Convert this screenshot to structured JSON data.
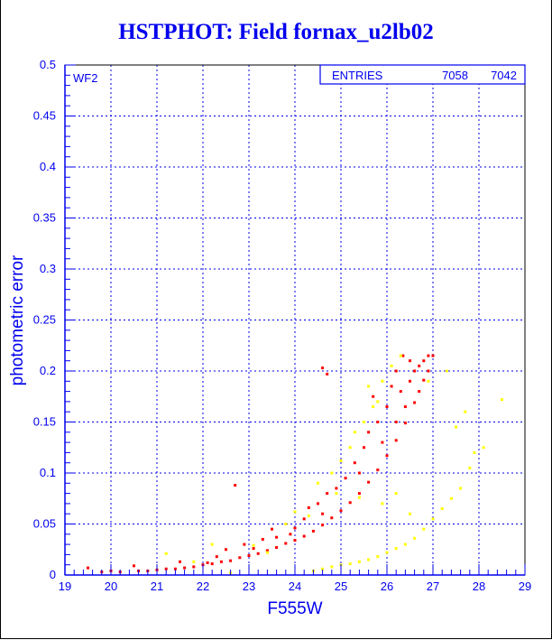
{
  "chart_data": {
    "type": "scatter",
    "title": "HSTPHOT: Field fornax_u2lb02",
    "panel_label": "WF2",
    "xlabel": "F555W",
    "ylabel": "photometric error",
    "xlim": [
      19,
      29
    ],
    "ylim": [
      0,
      0.5
    ],
    "grid": true,
    "x_ticks": [
      "19",
      "20",
      "21",
      "22",
      "23",
      "24",
      "25",
      "26",
      "27",
      "28",
      "29"
    ],
    "y_ticks": [
      "0",
      "0.05",
      "0.1",
      "0.15",
      "0.2",
      "0.25",
      "0.3",
      "0.35",
      "0.4",
      "0.45",
      "0.5"
    ],
    "stats_box": {
      "label": "ENTRIES",
      "values": [
        "7058",
        "7042"
      ],
      "placement": "top-right"
    },
    "series": [
      {
        "name": "red",
        "color": "#ff0000",
        "points": [
          [
            19.5,
            0.007
          ],
          [
            19.8,
            0.003
          ],
          [
            20.0,
            0.004
          ],
          [
            20.2,
            0.003
          ],
          [
            20.5,
            0.009
          ],
          [
            20.6,
            0.004
          ],
          [
            20.8,
            0.004
          ],
          [
            21.0,
            0.005
          ],
          [
            21.2,
            0.006
          ],
          [
            21.4,
            0.006
          ],
          [
            21.6,
            0.007
          ],
          [
            21.8,
            0.008
          ],
          [
            22.0,
            0.01
          ],
          [
            22.2,
            0.011
          ],
          [
            22.4,
            0.013
          ],
          [
            22.6,
            0.014
          ],
          [
            22.8,
            0.017
          ],
          [
            23.0,
            0.019
          ],
          [
            23.2,
            0.021
          ],
          [
            23.4,
            0.024
          ],
          [
            23.6,
            0.027
          ],
          [
            23.8,
            0.031
          ],
          [
            24.0,
            0.034
          ],
          [
            24.2,
            0.038
          ],
          [
            24.4,
            0.043
          ],
          [
            24.6,
            0.049
          ],
          [
            24.8,
            0.056
          ],
          [
            25.0,
            0.063
          ],
          [
            25.2,
            0.071
          ],
          [
            25.4,
            0.08
          ],
          [
            25.6,
            0.091
          ],
          [
            25.8,
            0.103
          ],
          [
            26.0,
            0.117
          ],
          [
            26.2,
            0.132
          ],
          [
            26.4,
            0.149
          ],
          [
            26.6,
            0.169
          ],
          [
            26.8,
            0.191
          ],
          [
            27.0,
            0.215
          ],
          [
            22.3,
            0.018
          ],
          [
            22.5,
            0.025
          ],
          [
            22.9,
            0.03
          ],
          [
            23.1,
            0.026
          ],
          [
            23.3,
            0.035
          ],
          [
            23.5,
            0.045
          ],
          [
            23.6,
            0.037
          ],
          [
            23.8,
            0.05
          ],
          [
            24.0,
            0.046
          ],
          [
            24.2,
            0.055
          ],
          [
            24.3,
            0.066
          ],
          [
            24.5,
            0.07
          ],
          [
            24.7,
            0.08
          ],
          [
            24.9,
            0.085
          ],
          [
            25.1,
            0.095
          ],
          [
            25.3,
            0.11
          ],
          [
            25.5,
            0.125
          ],
          [
            25.6,
            0.14
          ],
          [
            25.8,
            0.15
          ],
          [
            26.0,
            0.165
          ],
          [
            26.1,
            0.185
          ],
          [
            26.2,
            0.2
          ],
          [
            26.35,
            0.215
          ],
          [
            26.5,
            0.21
          ],
          [
            26.7,
            0.205
          ],
          [
            26.9,
            0.215
          ],
          [
            25.7,
            0.175
          ],
          [
            26.3,
            0.18
          ],
          [
            26.5,
            0.19
          ],
          [
            26.6,
            0.2
          ],
          [
            26.8,
            0.21
          ],
          [
            26.9,
            0.2
          ],
          [
            26.7,
            0.18
          ],
          [
            26.4,
            0.165
          ],
          [
            26.2,
            0.15
          ],
          [
            25.9,
            0.13
          ],
          [
            25.4,
            0.1
          ],
          [
            24.6,
            0.06
          ],
          [
            23.9,
            0.04
          ],
          [
            24.6,
            0.203
          ],
          [
            24.7,
            0.197
          ],
          [
            22.7,
            0.088
          ],
          [
            21.5,
            0.013
          ],
          [
            22.1,
            0.012
          ]
        ]
      },
      {
        "name": "yellow",
        "color": "#ffff00",
        "points": [
          [
            21.2,
            0.021
          ],
          [
            21.8,
            0.013
          ],
          [
            22.2,
            0.03
          ],
          [
            22.6,
            0.002
          ],
          [
            23.1,
            0.029
          ],
          [
            23.4,
            0.022
          ],
          [
            23.8,
            0.05
          ],
          [
            24.0,
            0.062
          ],
          [
            24.3,
            0.058
          ],
          [
            24.5,
            0.09
          ],
          [
            24.8,
            0.1
          ],
          [
            25.0,
            0.112
          ],
          [
            25.2,
            0.125
          ],
          [
            25.4,
            0.076
          ],
          [
            25.5,
            0.15
          ],
          [
            25.7,
            0.165
          ],
          [
            25.9,
            0.19
          ],
          [
            26.1,
            0.205
          ],
          [
            26.3,
            0.215
          ],
          [
            25.6,
            0.185
          ],
          [
            25.3,
            0.14
          ],
          [
            24.9,
            0.08
          ],
          [
            25.8,
            0.17
          ],
          [
            24.4,
            0.004
          ],
          [
            24.6,
            0.006
          ],
          [
            24.8,
            0.008
          ],
          [
            25.0,
            0.01
          ],
          [
            25.2,
            0.011
          ],
          [
            25.4,
            0.013
          ],
          [
            25.6,
            0.015
          ],
          [
            25.8,
            0.018
          ],
          [
            26.0,
            0.022
          ],
          [
            26.2,
            0.026
          ],
          [
            26.4,
            0.03
          ],
          [
            26.6,
            0.036
          ],
          [
            26.8,
            0.045
          ],
          [
            27.0,
            0.055
          ],
          [
            27.2,
            0.065
          ],
          [
            27.4,
            0.075
          ],
          [
            27.6,
            0.085
          ],
          [
            27.8,
            0.105
          ],
          [
            27.9,
            0.12
          ],
          [
            28.1,
            0.125
          ],
          [
            28.5,
            0.172
          ],
          [
            27.7,
            0.16
          ],
          [
            27.5,
            0.145
          ],
          [
            26.9,
            0.19
          ],
          [
            27.3,
            0.2
          ],
          [
            26.5,
            0.06
          ],
          [
            26.2,
            0.08
          ],
          [
            25.9,
            0.07
          ]
        ]
      }
    ]
  }
}
